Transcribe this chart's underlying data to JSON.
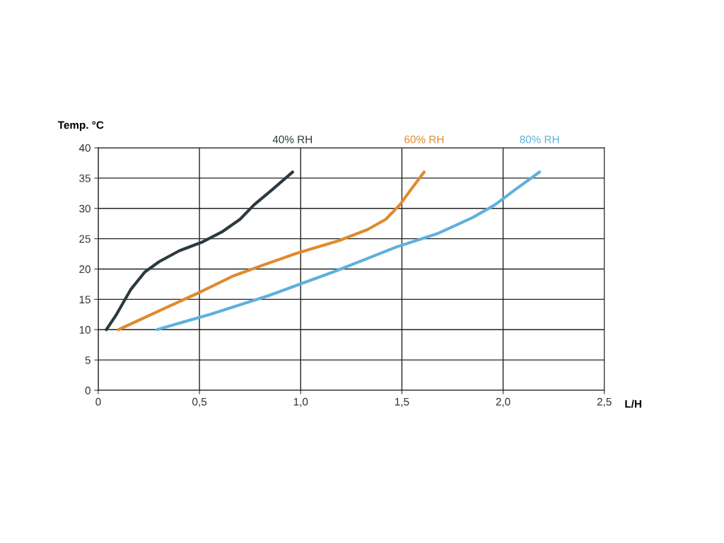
{
  "chart_data": {
    "type": "line",
    "xlabel": "L/H",
    "ylabel": "Temp. °C",
    "xlim": [
      0,
      2.5
    ],
    "xticks": [
      0,
      {
        "value": 0.5,
        "label": "0,5"
      },
      {
        "value": 1.0,
        "label": "1,0"
      },
      {
        "value": 1.5,
        "label": "1,5"
      },
      {
        "value": 2.0,
        "label": "2,0"
      },
      {
        "value": 2.5,
        "label": "2,5"
      }
    ],
    "ylim": [
      0,
      40
    ],
    "yticks": [
      0,
      5,
      10,
      15,
      20,
      25,
      30,
      35,
      40
    ],
    "grid": true,
    "legend": false,
    "marker": "none",
    "line_style": "solid",
    "series": [
      {
        "name": "40% RH",
        "color": "#2b3a3f",
        "x": [
          0.04,
          0.09,
          0.16,
          0.23,
          0.3,
          0.4,
          0.51,
          0.61,
          0.7,
          0.77,
          0.86,
          0.96
        ],
        "values": [
          10,
          12.5,
          16.6,
          19.5,
          21.2,
          23,
          24.4,
          26.1,
          28.2,
          30.6,
          33.1,
          36
        ]
      },
      {
        "name": "60% RH",
        "color": "#e08a2e",
        "x": [
          0.1,
          0.32,
          0.51,
          0.67,
          0.81,
          0.98,
          1.19,
          1.33,
          1.42,
          1.49,
          1.54,
          1.61
        ],
        "values": [
          10,
          13.4,
          16.3,
          18.9,
          20.6,
          22.6,
          24.7,
          26.5,
          28.2,
          30.6,
          32.9,
          36
        ]
      },
      {
        "name": "80% RH",
        "color": "#5fb0dc",
        "x": [
          0.29,
          0.56,
          0.84,
          1.16,
          1.47,
          1.68,
          1.85,
          1.96,
          2.06,
          2.18
        ],
        "values": [
          10,
          12.6,
          15.6,
          19.5,
          23.6,
          25.9,
          28.5,
          30.6,
          33.1,
          36
        ]
      }
    ]
  }
}
